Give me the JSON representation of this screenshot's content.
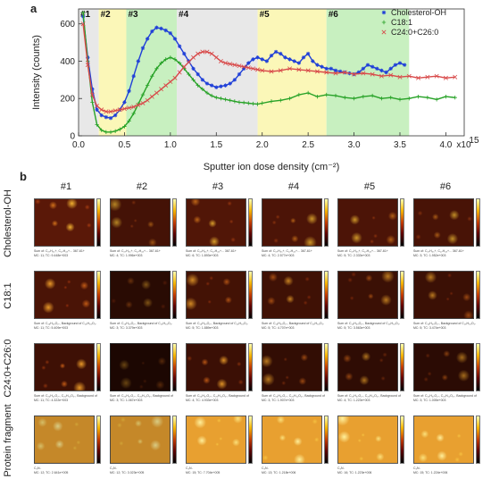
{
  "panel_a": {
    "letter": "a",
    "chart_data": {
      "type": "scatter",
      "xlabel": "Sputter ion dose density (cm⁻²)",
      "ylabel": "Intensity (counts)",
      "x_multiplier_label": "x10",
      "x_multiplier_exponent": "15",
      "x_ticks": [
        "0.0",
        "0.5",
        "1.0",
        "1.5",
        "2.0",
        "2.5",
        "3.0",
        "3.5",
        "4.0"
      ],
      "y_ticks": [
        "0",
        "200",
        "400",
        "600"
      ],
      "xlim": [
        0,
        4.2
      ],
      "ylim": [
        0,
        680
      ],
      "phases": [
        {
          "label": "#1",
          "x0": 0.0,
          "x1": 0.22,
          "color": "#e8e8e8"
        },
        {
          "label": "#2",
          "x0": 0.22,
          "x1": 0.52,
          "color": "#fbf7b8"
        },
        {
          "label": "#3",
          "x0": 0.52,
          "x1": 1.07,
          "color": "#c8f0c0"
        },
        {
          "label": "#4",
          "x0": 1.07,
          "x1": 1.95,
          "color": "#e8e8e8"
        },
        {
          "label": "#5",
          "x0": 1.95,
          "x1": 2.7,
          "color": "#fbf7b8"
        },
        {
          "label": "#6",
          "x0": 2.7,
          "x1": 3.6,
          "color": "#c8f0c0"
        }
      ],
      "series": [
        {
          "name": "Cholesterol-OH",
          "color": "#1f3fd8",
          "marker": "asterisk",
          "x": [
            0.05,
            0.1,
            0.15,
            0.2,
            0.25,
            0.3,
            0.35,
            0.4,
            0.45,
            0.5,
            0.55,
            0.6,
            0.65,
            0.7,
            0.75,
            0.8,
            0.85,
            0.9,
            0.95,
            1.0,
            1.05,
            1.1,
            1.15,
            1.2,
            1.25,
            1.3,
            1.35,
            1.4,
            1.45,
            1.5,
            1.55,
            1.6,
            1.65,
            1.7,
            1.75,
            1.8,
            1.85,
            1.9,
            1.95,
            2.0,
            2.05,
            2.1,
            2.15,
            2.2,
            2.25,
            2.3,
            2.35,
            2.4,
            2.45,
            2.5,
            2.55,
            2.6,
            2.65,
            2.7,
            2.75,
            2.8,
            2.85,
            2.9,
            2.95,
            3.0,
            3.05,
            3.1,
            3.15,
            3.2,
            3.25,
            3.3,
            3.35,
            3.4,
            3.45,
            3.5,
            3.55
          ],
          "y": [
            640,
            420,
            250,
            140,
            110,
            100,
            95,
            110,
            140,
            180,
            240,
            320,
            400,
            470,
            520,
            560,
            580,
            575,
            565,
            550,
            520,
            480,
            440,
            400,
            360,
            330,
            300,
            280,
            270,
            260,
            265,
            270,
            280,
            300,
            330,
            360,
            390,
            410,
            420,
            410,
            400,
            430,
            450,
            440,
            420,
            410,
            400,
            390,
            420,
            440,
            400,
            380,
            370,
            360,
            360,
            350,
            345,
            340,
            335,
            330,
            340,
            360,
            380,
            370,
            360,
            350,
            340,
            360,
            380,
            390,
            380
          ]
        },
        {
          "name": "C18:1",
          "color": "#27a227",
          "marker": "plus",
          "x": [
            0.05,
            0.1,
            0.15,
            0.2,
            0.25,
            0.3,
            0.35,
            0.4,
            0.45,
            0.5,
            0.55,
            0.6,
            0.65,
            0.7,
            0.75,
            0.8,
            0.85,
            0.9,
            0.95,
            1.0,
            1.05,
            1.1,
            1.15,
            1.2,
            1.25,
            1.3,
            1.35,
            1.4,
            1.45,
            1.5,
            1.55,
            1.6,
            1.65,
            1.7,
            1.75,
            1.8,
            1.85,
            1.9,
            1.95,
            2.0,
            2.1,
            2.2,
            2.3,
            2.4,
            2.5,
            2.6,
            2.7,
            2.8,
            2.9,
            3.0,
            3.1,
            3.2,
            3.3,
            3.4,
            3.5,
            3.6,
            3.7,
            3.8,
            3.9,
            4.0,
            4.1
          ],
          "y": [
            660,
            400,
            180,
            60,
            30,
            20,
            20,
            25,
            35,
            50,
            80,
            120,
            170,
            220,
            270,
            320,
            360,
            390,
            410,
            420,
            410,
            390,
            360,
            330,
            300,
            270,
            250,
            230,
            215,
            205,
            200,
            195,
            190,
            185,
            180,
            178,
            175,
            172,
            170,
            175,
            185,
            190,
            200,
            220,
            230,
            210,
            220,
            215,
            205,
            200,
            210,
            215,
            200,
            205,
            195,
            200,
            210,
            205,
            195,
            210,
            205
          ]
        },
        {
          "name": "C24:0+C26:0",
          "color": "#d84a4a",
          "marker": "cross",
          "x": [
            0.05,
            0.1,
            0.15,
            0.2,
            0.25,
            0.3,
            0.35,
            0.4,
            0.45,
            0.5,
            0.55,
            0.6,
            0.65,
            0.7,
            0.75,
            0.8,
            0.85,
            0.9,
            0.95,
            1.0,
            1.05,
            1.1,
            1.15,
            1.2,
            1.25,
            1.3,
            1.35,
            1.4,
            1.45,
            1.5,
            1.55,
            1.6,
            1.65,
            1.7,
            1.75,
            1.8,
            1.85,
            1.9,
            1.95,
            2.0,
            2.1,
            2.2,
            2.3,
            2.4,
            2.5,
            2.6,
            2.7,
            2.8,
            2.9,
            3.0,
            3.1,
            3.2,
            3.3,
            3.4,
            3.5,
            3.6,
            3.7,
            3.8,
            3.9,
            4.0,
            4.1
          ],
          "y": [
            600,
            380,
            220,
            160,
            140,
            130,
            130,
            135,
            140,
            145,
            150,
            155,
            165,
            175,
            190,
            210,
            230,
            250,
            270,
            290,
            310,
            340,
            370,
            395,
            420,
            440,
            450,
            450,
            440,
            420,
            400,
            390,
            385,
            380,
            375,
            370,
            365,
            360,
            355,
            350,
            345,
            350,
            360,
            355,
            350,
            345,
            340,
            335,
            340,
            330,
            335,
            330,
            320,
            325,
            315,
            320,
            310,
            315,
            320,
            310,
            315
          ]
        }
      ],
      "legend_position": "top-right"
    }
  },
  "panel_b": {
    "letter": "b",
    "columns": [
      "#1",
      "#2",
      "#3",
      "#4",
      "#5",
      "#6"
    ],
    "rows": [
      {
        "label": "Cholesterol-OH",
        "caption_line1": "Sum of: C₂₇H₄₅+, C₂₇H₄₃+... 367-61+",
        "caption_line2": [
          "MC: 11; TC: 9.448e+003",
          "MC: 4; TC: 1.996e+003",
          "MC: 6; TC: 1.893e+003",
          "MC: 4; TC: 2.577e+003",
          "MC: 5; TC: 2.333e+003",
          "MC: 3; TC: 1.952e+003"
        ]
      },
      {
        "label": "C18:1",
        "caption_line1": "Sum of: C₁₈H₃₃O₂-, Background of C₁₈H₃₃O₂-",
        "caption_line2": [
          "MC: 11; TC: 5.409e+003",
          "MC: 3; TC: 3.379e+003",
          "MC: 5; TC: 1.889e+003",
          "MC: 5; TC: 4.707e+003",
          "MC: 5; TC: 3.563e+003",
          "MC: 5; TC: 3.474e+003"
        ]
      },
      {
        "label": "C24:0+C26:0",
        "caption_line1": "Sum of: C₂₄H₄₇O₂-, C₂₆H₅₁O₂-, Background of",
        "caption_line2": [
          "MC: 11; TC: 4.322e+003",
          "MC: 3; TC: 1.067e+003",
          "MC: 4; TC: 4.933e+003",
          "MC: 3; TC: 1.907e+003",
          "MC: 4; TC: 1.223e+003",
          "MC: 3; TC: 1.005e+003"
        ]
      },
      {
        "label": "Protein fragment",
        "caption_line1": "C₃N₋",
        "caption_line2": [
          "MC: 12; TC: 2.641e+005",
          "MC: 12; TC: 3.023e+005",
          "MC: 15; TC: 7.704e+005",
          "MC: 13; TC: 1.218e+006",
          "MC: 16; TC: 1.223e+006",
          "MC: 15; TC: 1.224e+006"
        ]
      }
    ]
  }
}
